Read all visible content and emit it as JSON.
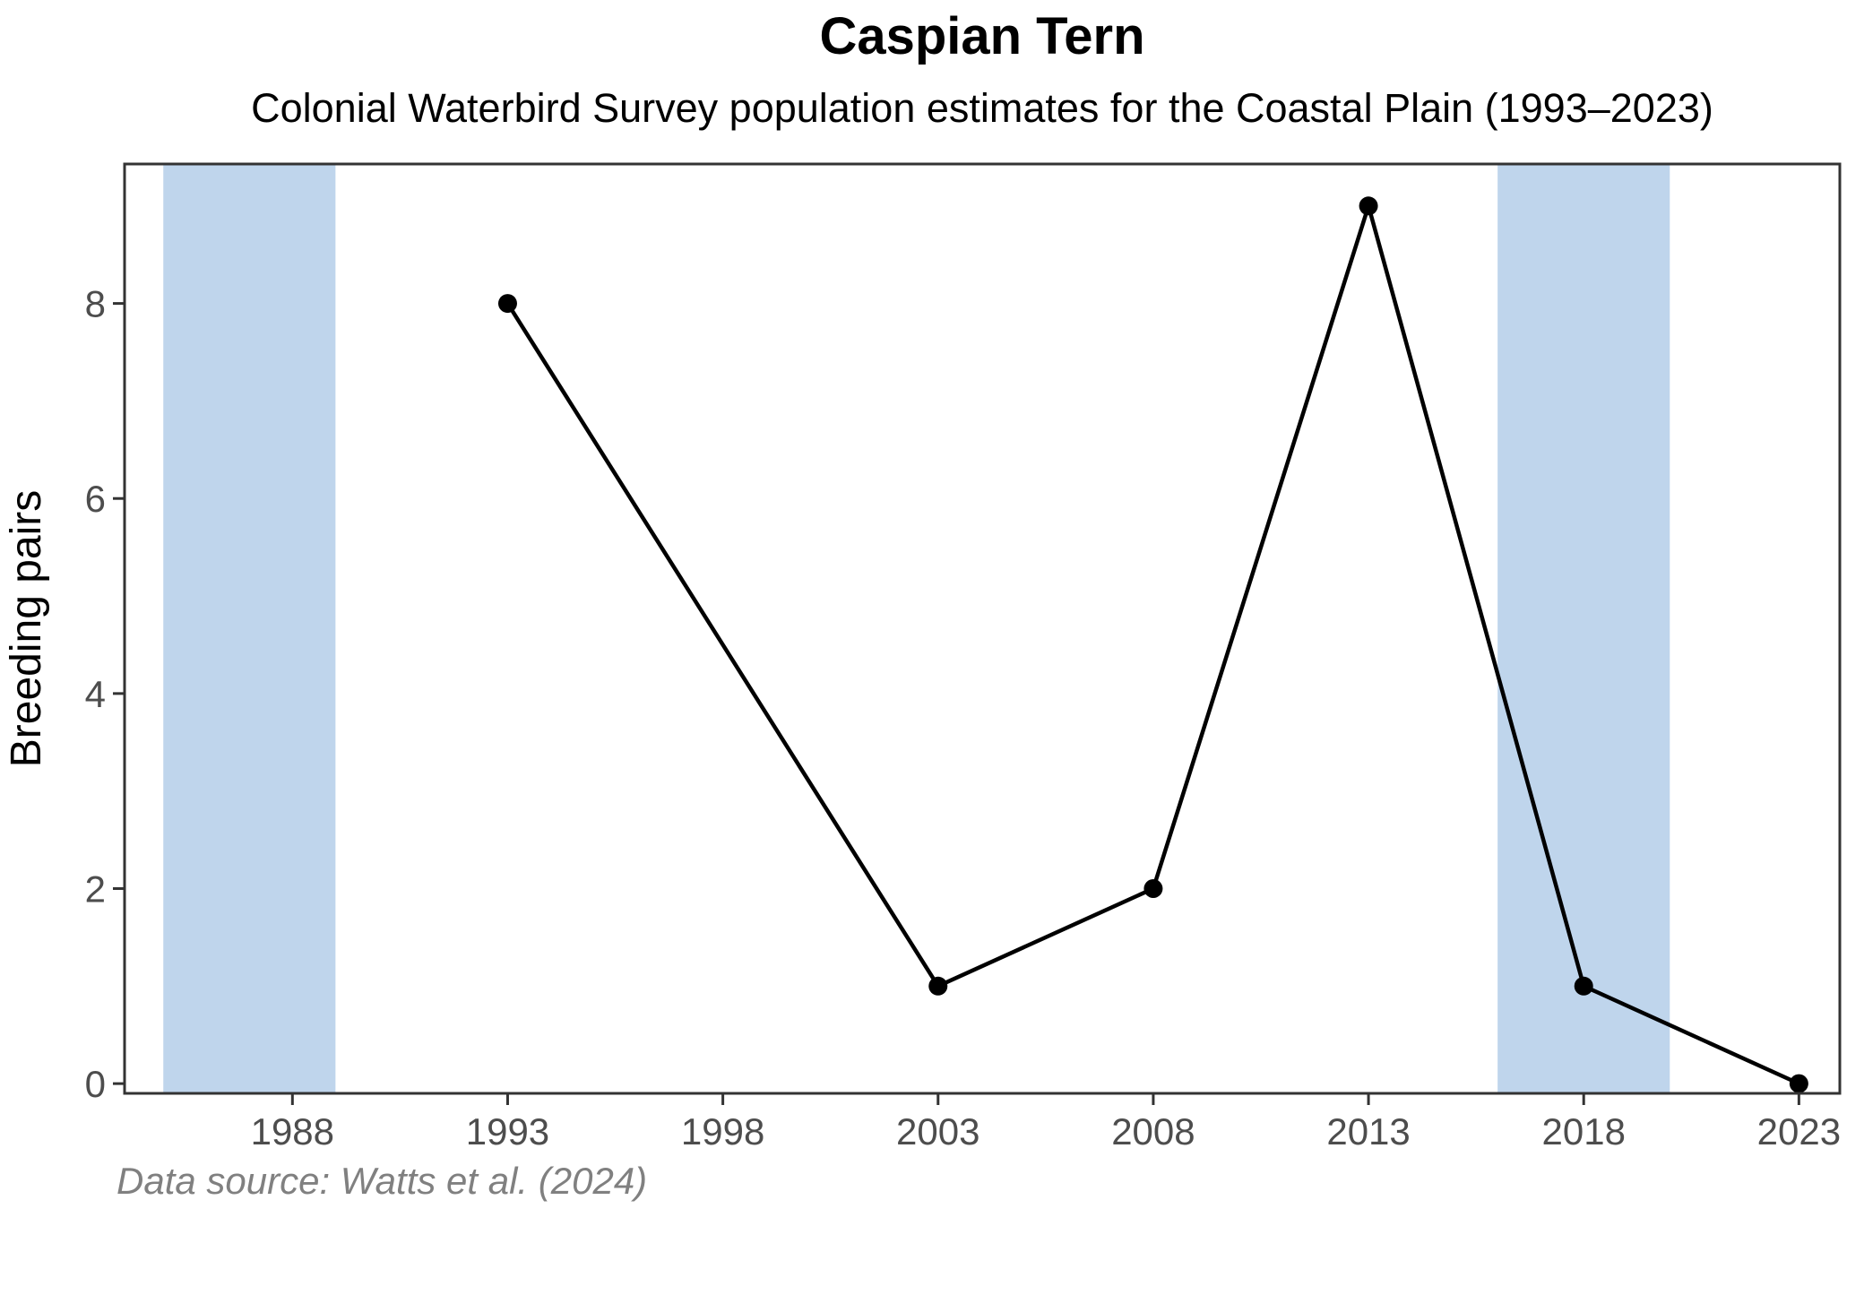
{
  "chart_data": {
    "type": "line",
    "title": "Caspian Tern",
    "subtitle": "Colonial Waterbird Survey population estimates for the Coastal Plain (1993–2023)",
    "caption": "Data source: Watts et al. (2024)",
    "xlabel": "",
    "ylabel": "Breeding pairs",
    "x": [
      1993,
      2003,
      2008,
      2013,
      2018,
      2023
    ],
    "values": [
      8,
      1,
      2,
      9,
      1,
      0
    ],
    "x_ticks": [
      1988,
      1993,
      1998,
      2003,
      2008,
      2013,
      2018,
      2023
    ],
    "y_ticks": [
      0,
      2,
      4,
      6,
      8
    ],
    "xlim": [
      1984.1,
      2023.95
    ],
    "ylim": [
      -0.1,
      9.43
    ],
    "shaded_periods": [
      {
        "start": 1985,
        "end": 1989
      },
      {
        "start": 2016,
        "end": 2020
      }
    ],
    "grid": false,
    "legend": "none",
    "colors": {
      "line": "#000000",
      "point": "#000000",
      "band_fill": "#bfd5ec",
      "panel_border": "#333333",
      "tick_mark": "#333333",
      "tick_label": "#4d4d4d",
      "title_text": "#000000",
      "caption_text": "#808080",
      "background": "#ffffff"
    }
  }
}
